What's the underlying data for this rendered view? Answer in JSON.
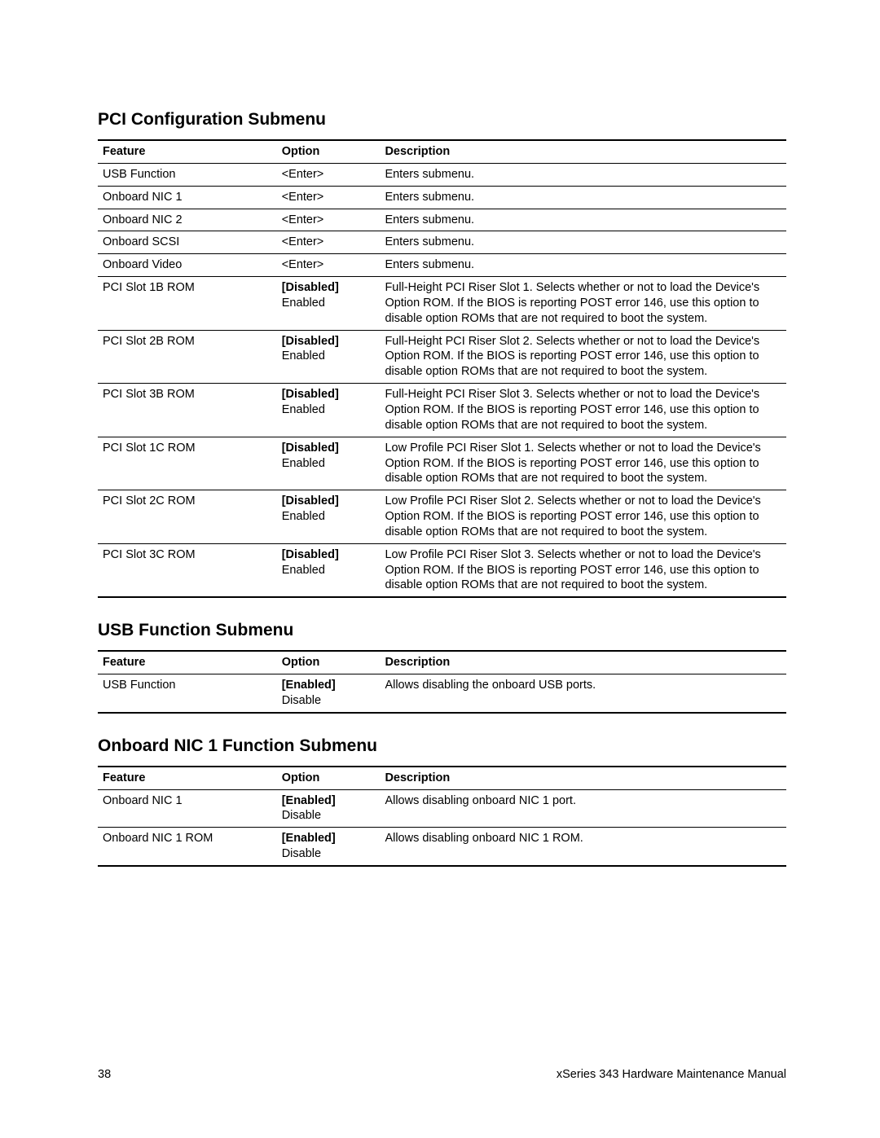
{
  "page": {
    "number": "38",
    "manual": "xSeries 343 Hardware Maintenance Manual"
  },
  "sections": [
    {
      "title": "PCI Configuration Submenu",
      "headers": {
        "feature": "Feature",
        "option": "Option",
        "description": "Description"
      },
      "rows": [
        {
          "feature": "USB Function",
          "option_default": "",
          "option_other": "<Enter>",
          "description": "Enters submenu."
        },
        {
          "feature": "Onboard NIC 1",
          "option_default": "",
          "option_other": "<Enter>",
          "description": "Enters submenu."
        },
        {
          "feature": "Onboard NIC 2",
          "option_default": "",
          "option_other": "<Enter>",
          "description": "Enters submenu."
        },
        {
          "feature": "Onboard SCSI",
          "option_default": "",
          "option_other": "<Enter>",
          "description": "Enters submenu."
        },
        {
          "feature": "Onboard Video",
          "option_default": "",
          "option_other": "<Enter>",
          "description": "Enters submenu."
        },
        {
          "feature": "PCI Slot 1B ROM",
          "option_default": "[Disabled]",
          "option_other": "Enabled",
          "description": "Full-Height PCI Riser Slot 1.  Selects whether or not to load the Device's Option ROM.  If the BIOS is reporting POST error 146, use this option to disable option ROMs that are not required to boot the system."
        },
        {
          "feature": "PCI Slot 2B ROM",
          "option_default": "[Disabled]",
          "option_other": "Enabled",
          "description": "Full-Height PCI Riser Slot 2.  Selects whether or not to load the Device's Option ROM.  If the BIOS is reporting POST error 146, use this option to disable option ROMs that are not required to boot the system."
        },
        {
          "feature": "PCI Slot 3B ROM",
          "option_default": "[Disabled]",
          "option_other": "Enabled",
          "description": "Full-Height PCI Riser Slot 3.  Selects whether or not to load the Device's Option ROM.  If the BIOS is reporting POST error 146, use this option to disable option ROMs that are not required to boot the system."
        },
        {
          "feature": "PCI Slot 1C ROM",
          "option_default": "[Disabled]",
          "option_other": "Enabled",
          "description": "Low Profile PCI Riser Slot 1.  Selects whether or not to load the Device's Option ROM.  If the BIOS is reporting POST error 146, use this option to disable option ROMs that are not required to boot the system."
        },
        {
          "feature": "PCI Slot 2C ROM",
          "option_default": "[Disabled]",
          "option_other": "Enabled",
          "description": "Low Profile PCI Riser Slot 2.  Selects whether or not to load the Device's Option ROM.  If the BIOS is reporting POST error 146, use this option to disable option ROMs that are not required to boot the system."
        },
        {
          "feature": "PCI Slot 3C ROM",
          "option_default": "[Disabled]",
          "option_other": "Enabled",
          "description": "Low Profile PCI Riser Slot 3.  Selects whether or not to load the Device's Option ROM.  If the BIOS is reporting POST error 146, use this option to disable option ROMs that are not required to boot the system."
        }
      ]
    },
    {
      "title": "USB Function Submenu",
      "headers": {
        "feature": "Feature",
        "option": "Option",
        "description": "Description"
      },
      "rows": [
        {
          "feature": "USB Function",
          "option_default": "[Enabled]",
          "option_other": "Disable",
          "description": "Allows disabling the onboard USB ports."
        }
      ]
    },
    {
      "title": "Onboard NIC 1 Function Submenu",
      "headers": {
        "feature": "Feature",
        "option": "Option",
        "description": "Description"
      },
      "rows": [
        {
          "feature": "Onboard NIC 1",
          "option_default": "[Enabled]",
          "option_other": "Disable",
          "description": "Allows disabling onboard NIC 1 port."
        },
        {
          "feature": "Onboard NIC 1 ROM",
          "option_default": "[Enabled]",
          "option_other": "Disable",
          "description": "Allows disabling onboard NIC 1 ROM."
        }
      ]
    }
  ]
}
